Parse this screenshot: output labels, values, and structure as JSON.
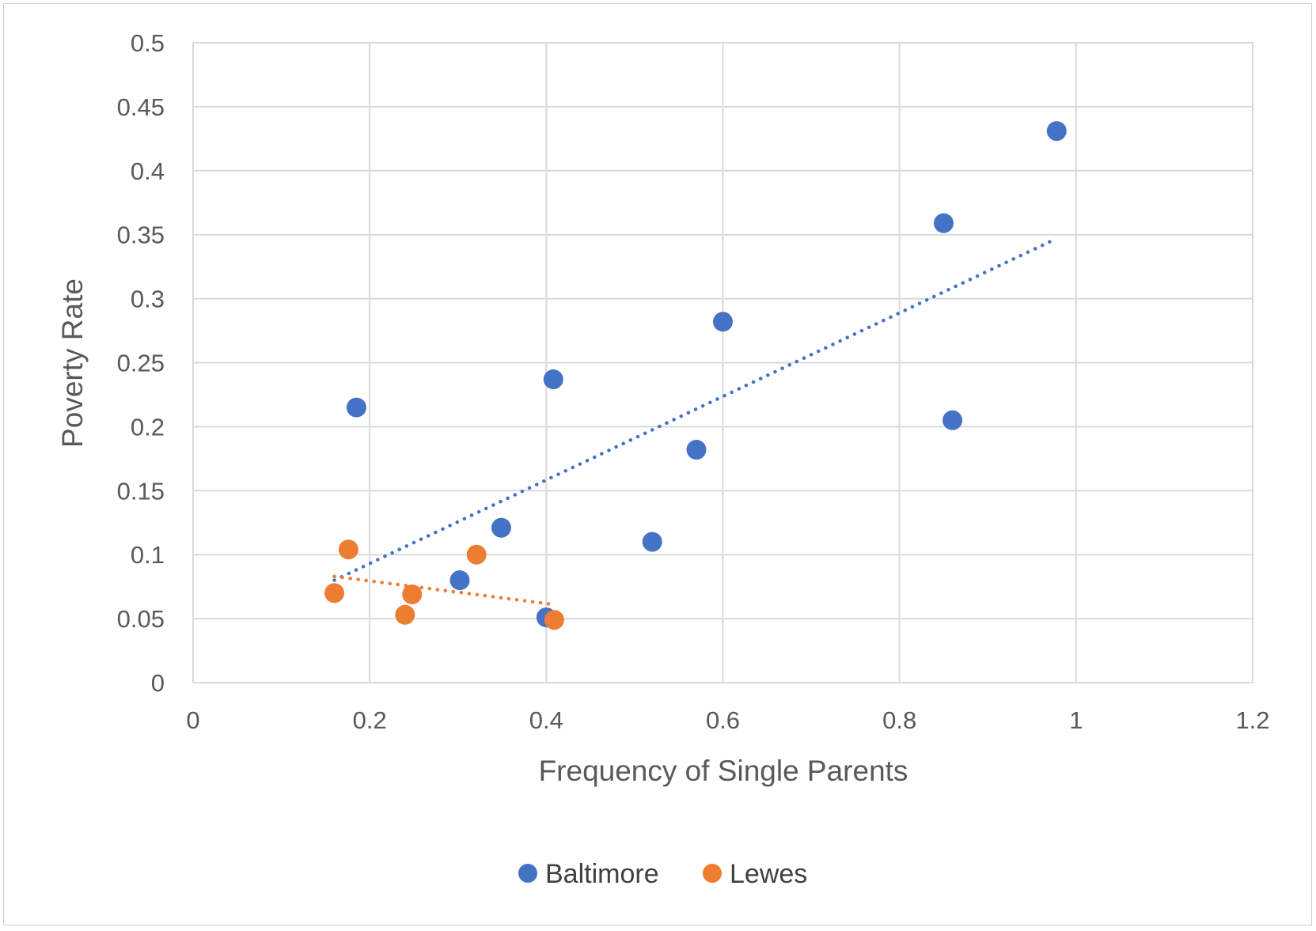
{
  "chart_data": {
    "type": "scatter",
    "title": "",
    "xlabel": "Frequency of Single Parents",
    "ylabel": "Poverty Rate",
    "xlim": [
      0,
      1.2
    ],
    "ylim": [
      0,
      0.5
    ],
    "x_ticks": [
      "0",
      "0.2",
      "0.4",
      "0.6",
      "0.8",
      "1",
      "1.2"
    ],
    "y_ticks": [
      "0",
      "0.05",
      "0.1",
      "0.15",
      "0.2",
      "0.25",
      "0.3",
      "0.35",
      "0.4",
      "0.45",
      "0.5"
    ],
    "grid": true,
    "legend_position": "bottom",
    "series": [
      {
        "name": "Baltimore",
        "color": "#4472C4",
        "points": [
          {
            "x": 0.185,
            "y": 0.215
          },
          {
            "x": 0.302,
            "y": 0.08
          },
          {
            "x": 0.349,
            "y": 0.121
          },
          {
            "x": 0.4,
            "y": 0.051
          },
          {
            "x": 0.408,
            "y": 0.237
          },
          {
            "x": 0.52,
            "y": 0.11
          },
          {
            "x": 0.57,
            "y": 0.182
          },
          {
            "x": 0.6,
            "y": 0.282
          },
          {
            "x": 0.85,
            "y": 0.359
          },
          {
            "x": 0.86,
            "y": 0.205
          },
          {
            "x": 0.978,
            "y": 0.431
          }
        ],
        "trendline": {
          "x": [
            0.16,
            0.978
          ],
          "y": [
            0.08,
            0.347
          ]
        }
      },
      {
        "name": "Lewes",
        "color": "#ED7D31",
        "points": [
          {
            "x": 0.16,
            "y": 0.07
          },
          {
            "x": 0.176,
            "y": 0.104
          },
          {
            "x": 0.24,
            "y": 0.053
          },
          {
            "x": 0.248,
            "y": 0.069
          },
          {
            "x": 0.321,
            "y": 0.1
          },
          {
            "x": 0.409,
            "y": 0.049
          }
        ],
        "trendline": {
          "x": [
            0.16,
            0.409
          ],
          "y": [
            0.083,
            0.061
          ]
        }
      }
    ]
  }
}
